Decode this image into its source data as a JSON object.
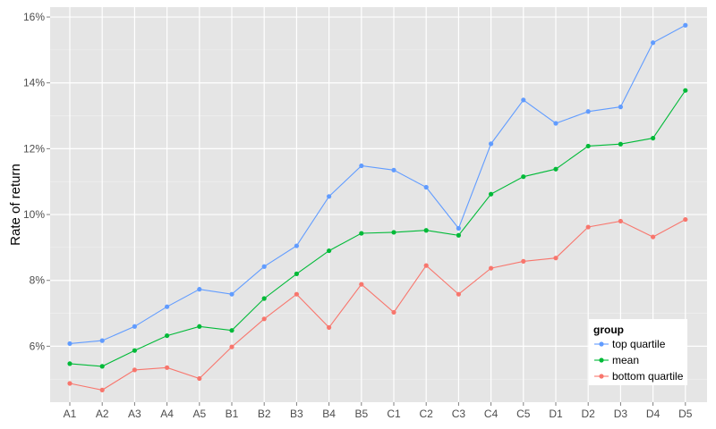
{
  "chart_data": {
    "type": "line",
    "title": "",
    "xlabel": "",
    "ylabel": "Rate of return",
    "categories": [
      "A1",
      "A2",
      "A3",
      "A4",
      "A5",
      "B1",
      "B2",
      "B3",
      "B4",
      "B5",
      "C1",
      "C2",
      "C3",
      "C4",
      "C5",
      "D1",
      "D2",
      "D3",
      "D4",
      "D5"
    ],
    "ylim": [
      4.3,
      16.3
    ],
    "yticks": [
      6,
      8,
      10,
      12,
      14,
      16
    ],
    "ytick_labels": [
      "6%",
      "8%",
      "10%",
      "12%",
      "14%",
      "16%"
    ],
    "grid": true,
    "legend": {
      "title": "group",
      "position": "bottom-right"
    },
    "series": [
      {
        "name": "top quartile",
        "color": "#619cff",
        "values": [
          6.08,
          6.17,
          6.6,
          7.2,
          7.73,
          7.58,
          8.42,
          9.05,
          10.55,
          11.48,
          11.35,
          10.83,
          9.58,
          12.15,
          13.48,
          12.77,
          13.13,
          13.27,
          15.22,
          15.75
        ]
      },
      {
        "name": "mean",
        "color": "#00ba38",
        "values": [
          5.47,
          5.39,
          5.87,
          6.32,
          6.6,
          6.48,
          7.45,
          8.2,
          8.9,
          9.43,
          9.46,
          9.52,
          9.37,
          10.62,
          11.15,
          11.38,
          12.08,
          12.14,
          12.32,
          13.77
        ]
      },
      {
        "name": "bottom quartile",
        "color": "#f8766d",
        "values": [
          4.87,
          4.67,
          5.28,
          5.35,
          5.02,
          5.98,
          6.83,
          7.58,
          6.57,
          7.88,
          7.03,
          8.45,
          7.58,
          8.37,
          8.58,
          8.68,
          9.62,
          9.8,
          9.32,
          9.85
        ]
      }
    ]
  },
  "colors": {
    "panel_background": "#e5e5e5",
    "grid_major": "#ffffff",
    "grid_minor": "#f2f2f2",
    "tick_text": "#4d4d4d"
  }
}
